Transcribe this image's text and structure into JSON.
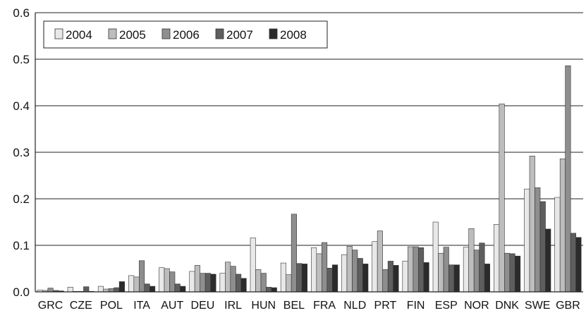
{
  "chart_data": {
    "type": "bar",
    "categories": [
      "GRC",
      "CZE",
      "POL",
      "ITA",
      "AUT",
      "DEU",
      "IRL",
      "HUN",
      "BEL",
      "FRA",
      "NLD",
      "PRT",
      "FIN",
      "ESP",
      "NOR",
      "DNK",
      "SWE",
      "GBR"
    ],
    "series": [
      {
        "name": "2004",
        "color": "#e8e8e8",
        "values": [
          0.004,
          0.01,
          0.012,
          0.035,
          0.052,
          0.044,
          0.04,
          0.116,
          0.062,
          0.095,
          0.08,
          0.108,
          0.066,
          0.15,
          0.096,
          0.145,
          0.221,
          0.203
        ]
      },
      {
        "name": "2005",
        "color": "#bdbdbd",
        "values": [
          0.003,
          0.001,
          0.006,
          0.032,
          0.05,
          0.057,
          0.064,
          0.048,
          0.037,
          0.082,
          0.098,
          0.131,
          0.097,
          0.083,
          0.136,
          0.404,
          0.292,
          0.286
        ]
      },
      {
        "name": "2006",
        "color": "#8e8e8e",
        "values": [
          0.008,
          0.001,
          0.007,
          0.067,
          0.043,
          0.04,
          0.055,
          0.04,
          0.167,
          0.106,
          0.09,
          0.048,
          0.097,
          0.096,
          0.09,
          0.083,
          0.224,
          0.486
        ]
      },
      {
        "name": "2007",
        "color": "#5e5e5e",
        "values": [
          0.003,
          0.011,
          0.009,
          0.017,
          0.017,
          0.04,
          0.038,
          0.01,
          0.061,
          0.051,
          0.072,
          0.066,
          0.095,
          0.058,
          0.105,
          0.082,
          0.194,
          0.126
        ]
      },
      {
        "name": "2008",
        "color": "#2b2b2b",
        "values": [
          0.002,
          0.001,
          0.022,
          0.012,
          0.012,
          0.038,
          0.029,
          0.009,
          0.06,
          0.058,
          0.06,
          0.057,
          0.063,
          0.058,
          0.06,
          0.077,
          0.135,
          0.117
        ]
      }
    ],
    "yticks": [
      "0.0",
      "0.1",
      "0.2",
      "0.3",
      "0.4",
      "0.5",
      "0.6"
    ],
    "ylim": [
      0,
      0.6
    ],
    "grid": "horizontal",
    "legend_position": "top-left",
    "title": "",
    "xlabel": "",
    "ylabel": ""
  }
}
